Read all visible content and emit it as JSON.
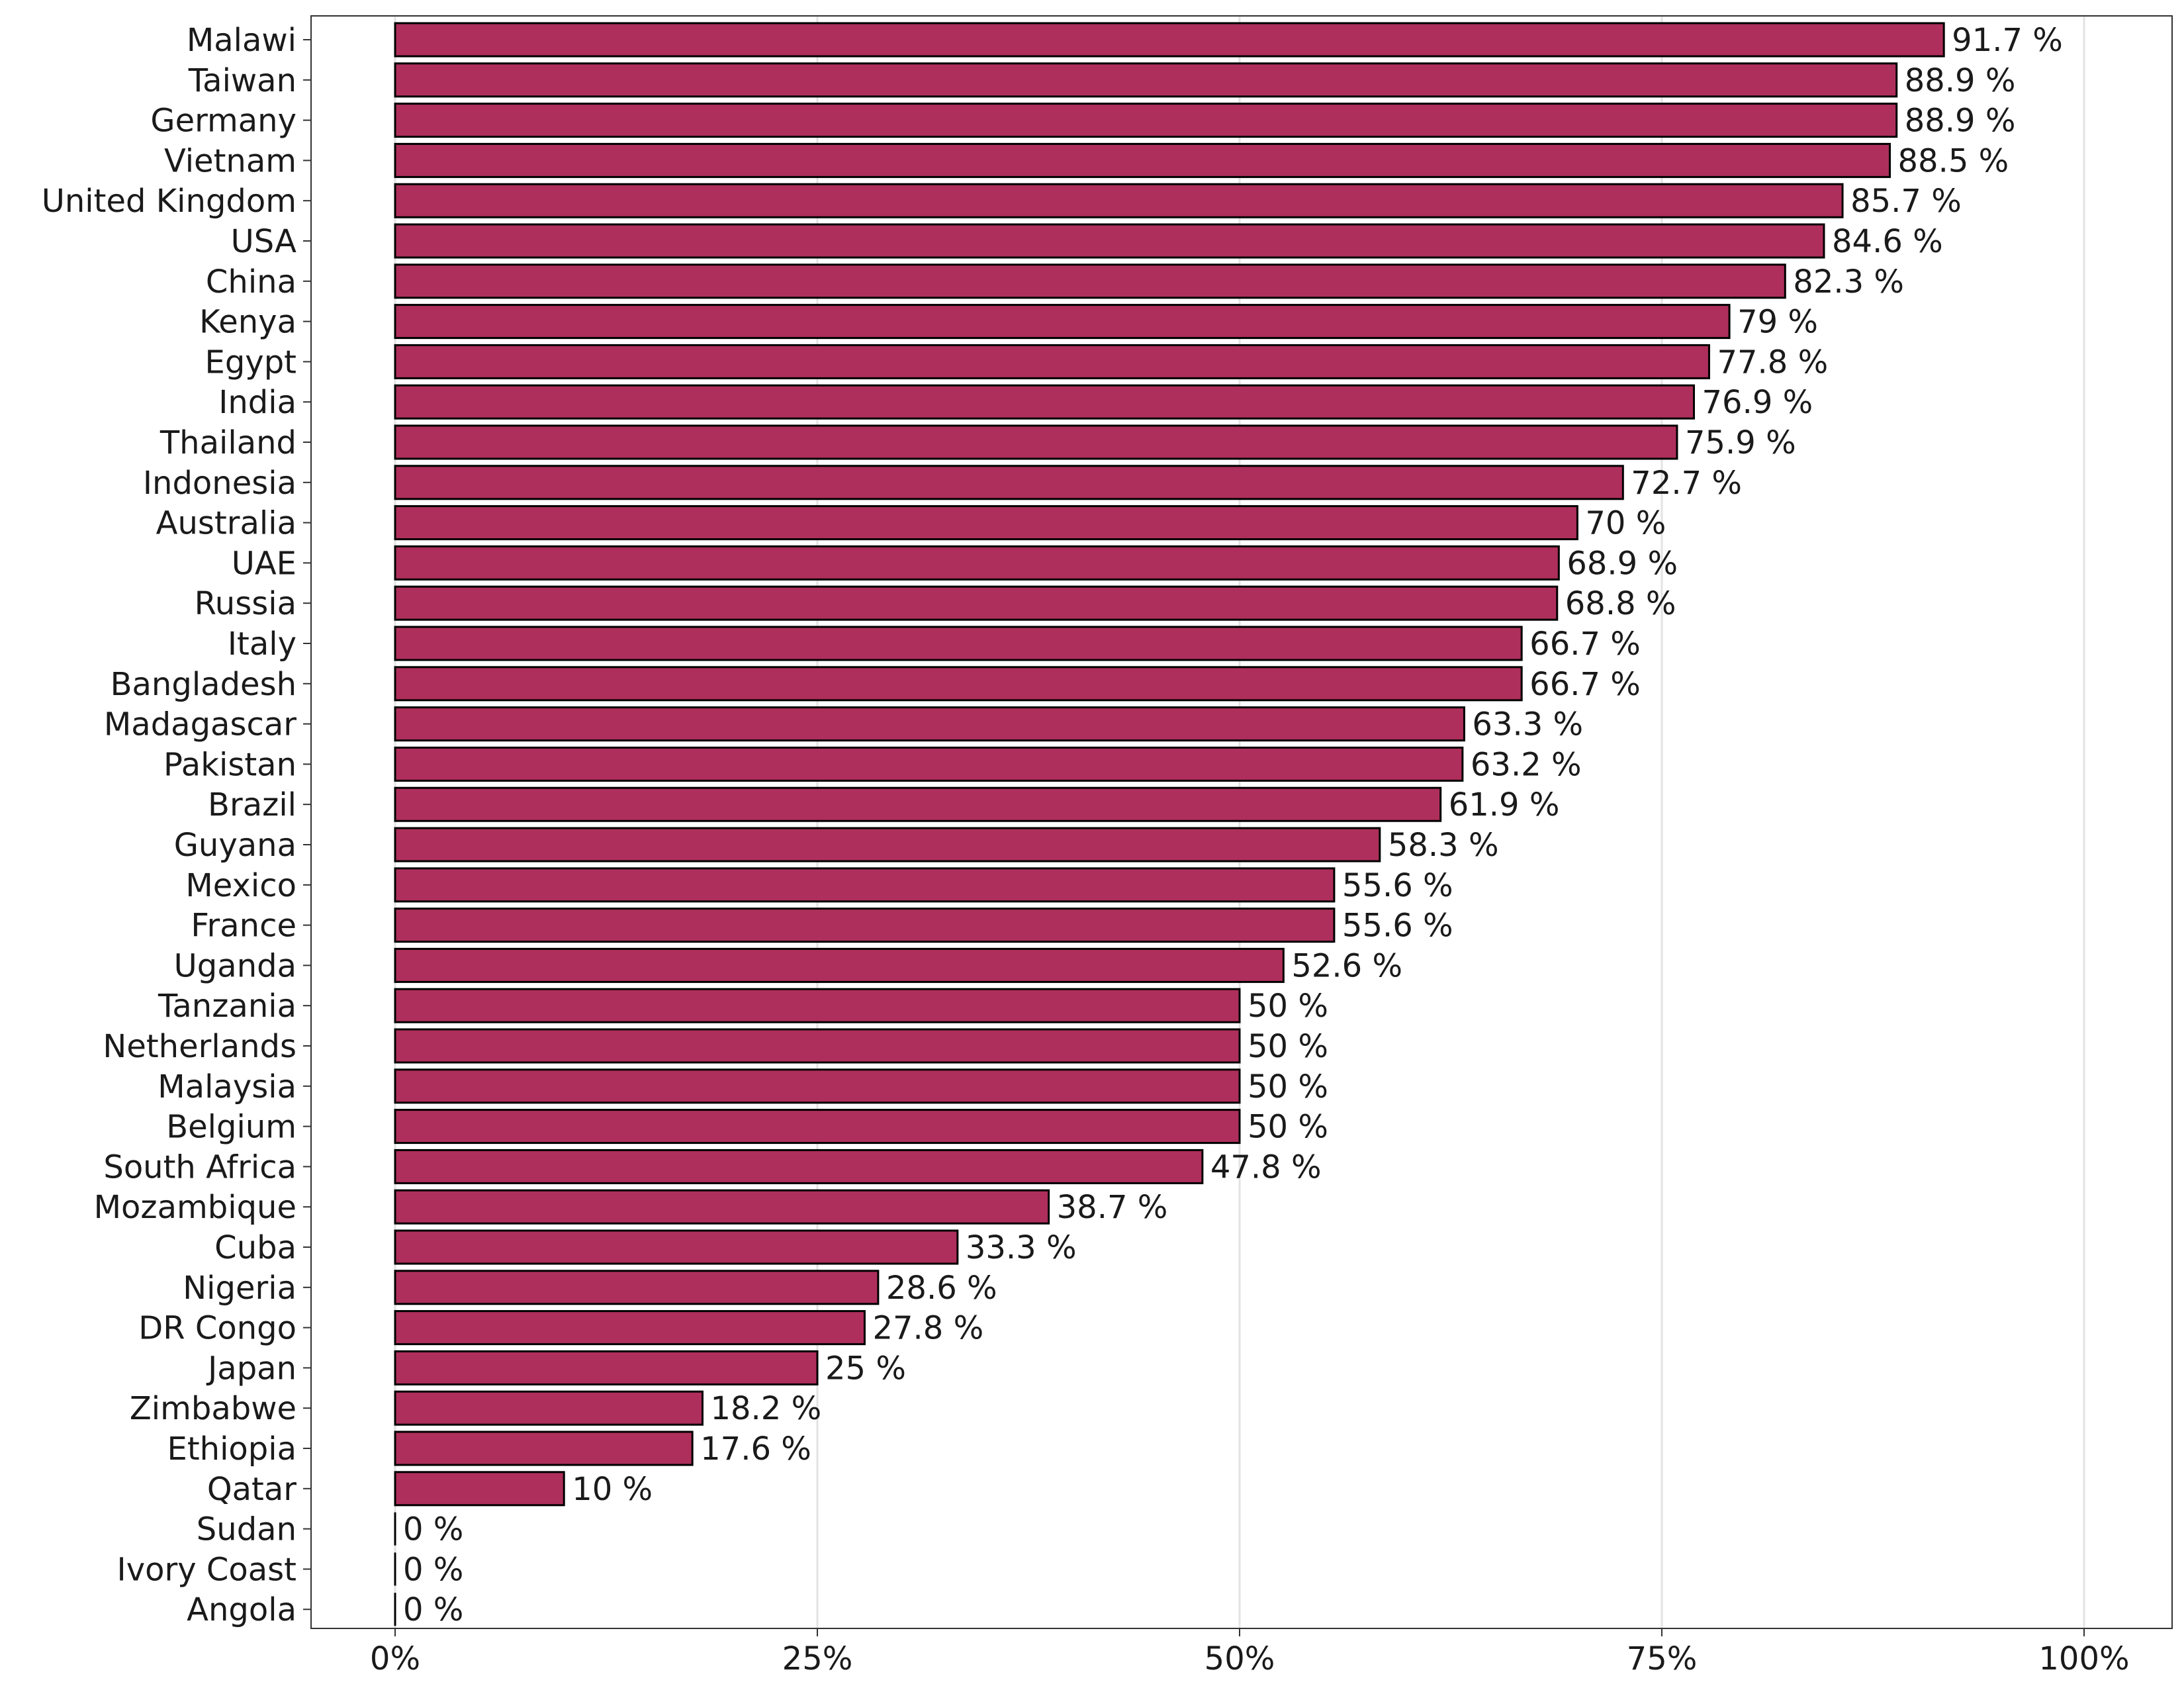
{
  "chart_data": {
    "type": "bar",
    "orientation": "horizontal",
    "title": "",
    "xlabel": "",
    "ylabel": "",
    "xlim": [
      0,
      100
    ],
    "x_ticks": [
      0,
      25,
      50,
      75,
      100
    ],
    "x_tick_labels": [
      "0%",
      "25%",
      "50%",
      "75%",
      "100%"
    ],
    "grid": "vertical major gridlines",
    "bar_color": "#ae2f5b",
    "bar_outline": "#000000",
    "categories": [
      "Malawi",
      "Taiwan",
      "Germany",
      "Vietnam",
      "United Kingdom",
      "USA",
      "China",
      "Kenya",
      "Egypt",
      "India",
      "Thailand",
      "Indonesia",
      "Australia",
      "UAE",
      "Russia",
      "Italy",
      "Bangladesh",
      "Madagascar",
      "Pakistan",
      "Brazil",
      "Guyana",
      "Mexico",
      "France",
      "Uganda",
      "Tanzania",
      "Netherlands",
      "Malaysia",
      "Belgium",
      "South Africa",
      "Mozambique",
      "Cuba",
      "Nigeria",
      "DR Congo",
      "Japan",
      "Zimbabwe",
      "Ethiopia",
      "Qatar",
      "Sudan",
      "Ivory Coast",
      "Angola"
    ],
    "values": [
      91.7,
      88.9,
      88.9,
      88.5,
      85.7,
      84.6,
      82.3,
      79,
      77.8,
      76.9,
      75.9,
      72.7,
      70,
      68.9,
      68.8,
      66.7,
      66.7,
      63.3,
      63.2,
      61.9,
      58.3,
      55.6,
      55.6,
      52.6,
      50,
      50,
      50,
      50,
      47.8,
      38.7,
      33.3,
      28.6,
      27.8,
      25,
      18.2,
      17.6,
      10,
      0,
      0,
      0
    ],
    "value_labels": [
      "91.7 %",
      "88.9 %",
      "88.9 %",
      "88.5 %",
      "85.7 %",
      "84.6 %",
      "82.3 %",
      "79 %",
      "77.8 %",
      "76.9 %",
      "75.9 %",
      "72.7 %",
      "70 %",
      "68.9 %",
      "68.8 %",
      "66.7 %",
      "66.7 %",
      "63.3 %",
      "63.2 %",
      "61.9 %",
      "58.3 %",
      "55.6 %",
      "55.6 %",
      "52.6 %",
      "50 %",
      "50 %",
      "50 %",
      "50 %",
      "47.8 %",
      "38.7 %",
      "33.3 %",
      "28.6 %",
      "27.8 %",
      "25 %",
      "18.2 %",
      "17.6 %",
      "10 %",
      "0 %",
      "0 %",
      "0 %"
    ]
  }
}
